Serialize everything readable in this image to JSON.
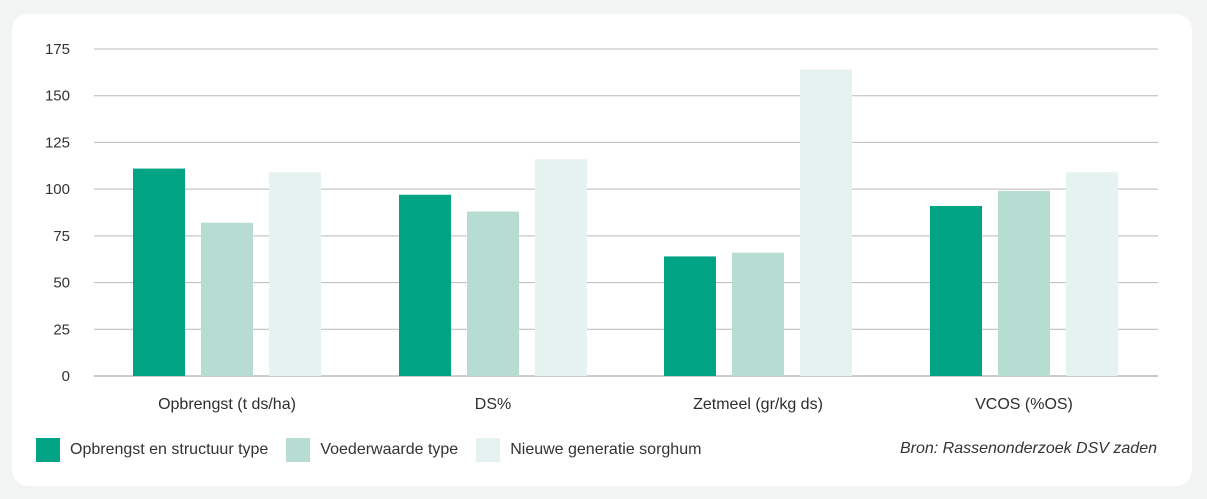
{
  "chart_data": {
    "type": "bar",
    "categories": [
      "Opbrengst (t ds/ha)",
      "DS%",
      "Zetmeel (gr/kg ds)",
      "VCOS (%OS)"
    ],
    "series": [
      {
        "name": "Opbrengst en structuur type",
        "color": "#00a383",
        "values": [
          111,
          97,
          64,
          91
        ]
      },
      {
        "name": "Voederwaarde type",
        "color": "#b7dcd2",
        "values": [
          82,
          88,
          66,
          99
        ]
      },
      {
        "name": "Nieuwe generatie sorghum",
        "color": "#e6f2ef",
        "values": [
          109,
          116,
          164,
          109
        ]
      }
    ],
    "yticks": [
      "0",
      "25",
      "50",
      "75",
      "100",
      "125",
      "150",
      "175"
    ],
    "ylim": [
      0,
      175
    ],
    "grid": true,
    "legend_position": "bottom-left",
    "source": "Bron: Rassenonderzoek DSV zaden"
  }
}
